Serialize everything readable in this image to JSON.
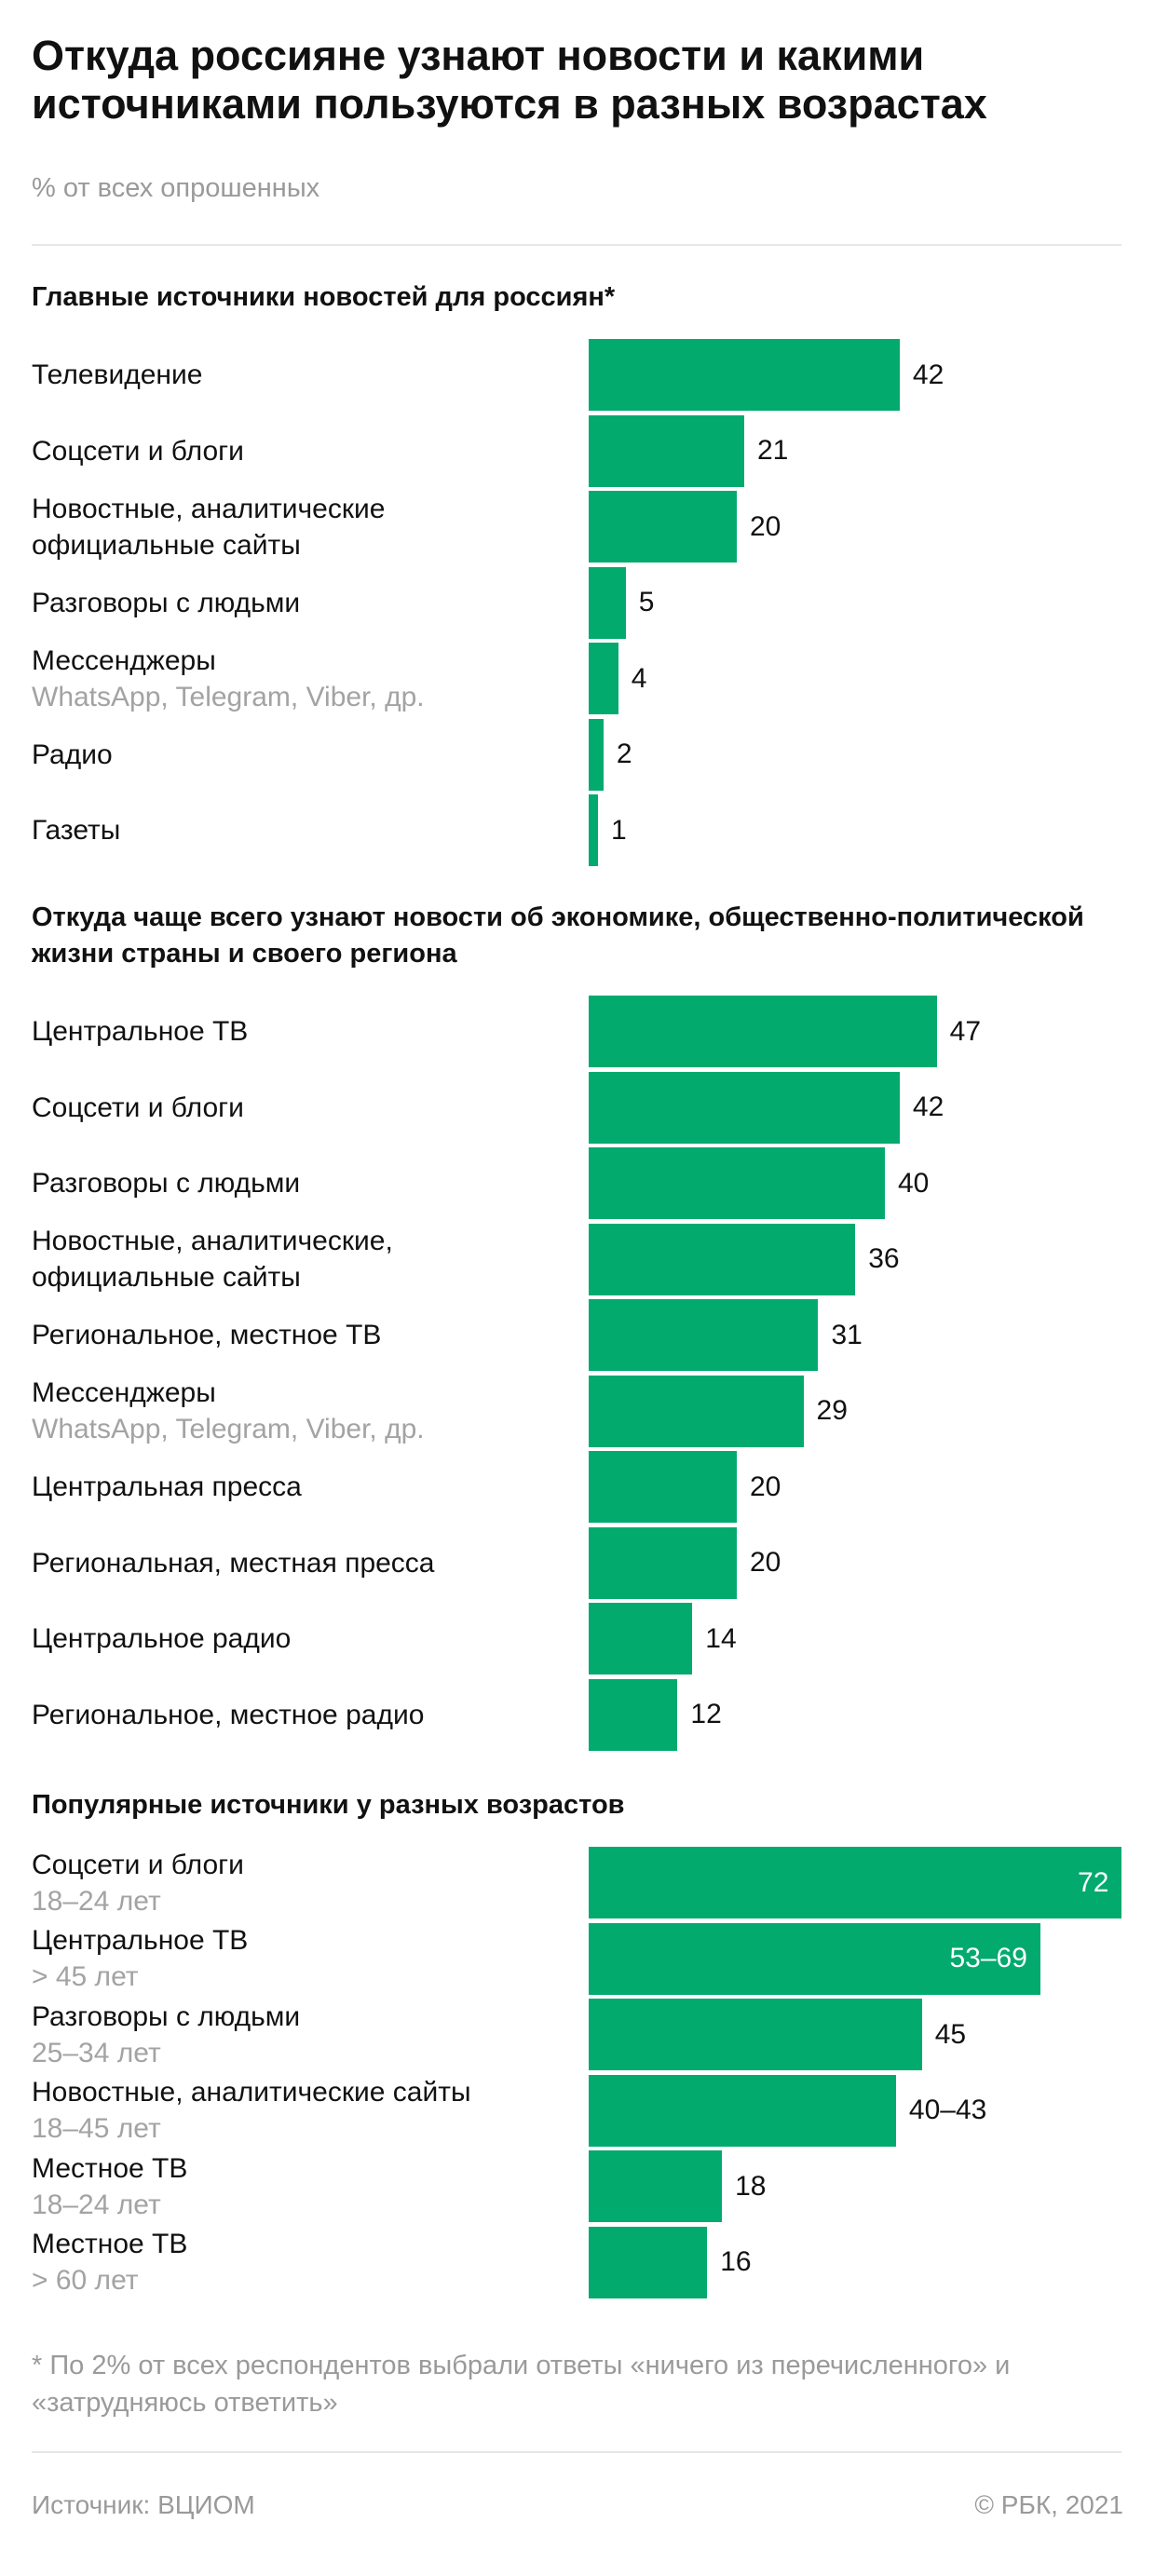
{
  "header": {
    "title": "Откуда россияне узнают новости и какими источниками пользуются в разных возрастах",
    "subtitle": "% от всех опрошенных"
  },
  "colors": {
    "bar": "#03aa6e",
    "text": "#111111",
    "muted": "#9a9a9a"
  },
  "chart_data": [
    {
      "type": "bar",
      "orientation": "horizontal",
      "title": "Главные источники новостей для россиян*",
      "xlim": [
        0,
        72
      ],
      "rows": [
        {
          "label": "Телевидение",
          "sub": "",
          "value": 42,
          "display": "42"
        },
        {
          "label": "Соцсети и блоги",
          "sub": "",
          "value": 21,
          "display": "21"
        },
        {
          "label": "Новостные, аналитические официальные сайты",
          "sub": "",
          "value": 20,
          "display": "20"
        },
        {
          "label": "Разговоры с людьми",
          "sub": "",
          "value": 5,
          "display": "5"
        },
        {
          "label": "Мессенджеры",
          "sub": "WhatsApp, Telegram, Viber, др.",
          "value": 4,
          "display": "4"
        },
        {
          "label": "Радио",
          "sub": "",
          "value": 2,
          "display": "2"
        },
        {
          "label": "Газеты",
          "sub": "",
          "value": 1,
          "display": "1"
        }
      ]
    },
    {
      "type": "bar",
      "orientation": "horizontal",
      "title": "Откуда чаще всего узнают новости об экономике, общественно-политической жизни страны и своего региона",
      "xlim": [
        0,
        72
      ],
      "rows": [
        {
          "label": "Центральное ТВ",
          "sub": "",
          "value": 47,
          "display": "47"
        },
        {
          "label": "Соцсети и блоги",
          "sub": "",
          "value": 42,
          "display": "42"
        },
        {
          "label": "Разговоры с людьми",
          "sub": "",
          "value": 40,
          "display": "40"
        },
        {
          "label": "Новостные, аналитические, официальные сайты",
          "sub": "",
          "value": 36,
          "display": "36"
        },
        {
          "label": "Региональное, местное ТВ",
          "sub": "",
          "value": 31,
          "display": "31"
        },
        {
          "label": "Мессенджеры",
          "sub": "WhatsApp, Telegram, Viber, др.",
          "value": 29,
          "display": "29"
        },
        {
          "label": "Центральная пресса",
          "sub": "",
          "value": 20,
          "display": "20"
        },
        {
          "label": "Региональная, местная пресса",
          "sub": "",
          "value": 20,
          "display": "20"
        },
        {
          "label": "Центральное радио",
          "sub": "",
          "value": 14,
          "display": "14"
        },
        {
          "label": "Региональное, местное радио",
          "sub": "",
          "value": 12,
          "display": "12"
        }
      ]
    },
    {
      "type": "bar",
      "orientation": "horizontal",
      "title": "Популярные источники у разных возрастов",
      "xlim": [
        0,
        72
      ],
      "rows": [
        {
          "label": "Соцсети и блоги",
          "sub": "18–24 лет",
          "value": 72,
          "display": "72",
          "inside": true
        },
        {
          "label": "Центральное ТВ",
          "sub": "> 45 лет",
          "value": 61,
          "display": "53–69",
          "inside": true
        },
        {
          "label": "Разговоры с людьми",
          "sub": "25–34 лет",
          "value": 45,
          "display": "45"
        },
        {
          "label": "Новостные, аналитические сайты",
          "sub": "18–45 лет",
          "value": 41.5,
          "display": "40–43"
        },
        {
          "label": "Местное ТВ",
          "sub": "18–24 лет",
          "value": 18,
          "display": "18"
        },
        {
          "label": "Местное ТВ",
          "sub": "> 60 лет",
          "value": 16,
          "display": "16"
        }
      ]
    }
  ],
  "footer": {
    "footnote": "* По 2% от всех респондентов выбрали ответы «ничего из перечисленного» и «затрудняюсь ответить»",
    "source": "Источник:  ВЦИОМ",
    "copyright": "©  РБК, 2021"
  }
}
